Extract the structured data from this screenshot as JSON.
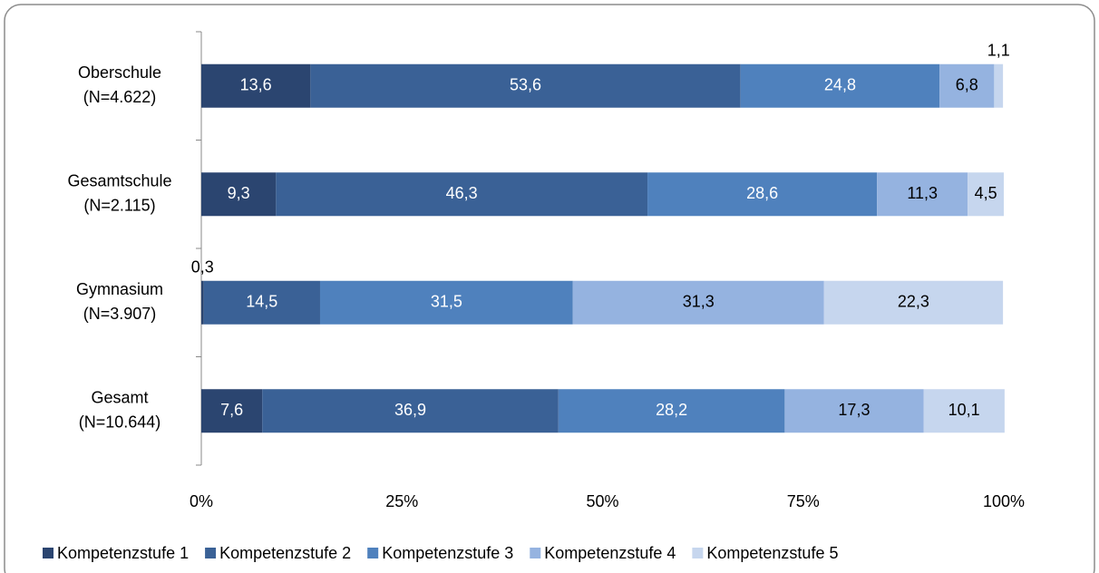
{
  "chart_data": {
    "type": "stacked-bar-horizontal",
    "categories": [
      [
        "Oberschule",
        "(N=4.622)"
      ],
      [
        "Gesamtschule",
        "(N=2.115)"
      ],
      [
        "Gymnasium",
        "(N=3.907)"
      ],
      [
        "Gesamt",
        "(N=10.644)"
      ]
    ],
    "series": [
      {
        "name": "Kompetenzstufe 1",
        "color": "#2b4570",
        "values": [
          13.6,
          9.3,
          0.3,
          7.6
        ],
        "value_labels": [
          "13,6",
          "9,3",
          "0,3",
          "7,6"
        ]
      },
      {
        "name": "Kompetenzstufe 2",
        "color": "#3a6196",
        "values": [
          53.6,
          46.3,
          14.5,
          36.9
        ],
        "value_labels": [
          "53,6",
          "46,3",
          "14,5",
          "36,9"
        ]
      },
      {
        "name": "Kompetenzstufe 3",
        "color": "#4f81bd",
        "values": [
          24.8,
          28.6,
          31.5,
          28.2
        ],
        "value_labels": [
          "24,8",
          "28,6",
          "31,5",
          "28,2"
        ]
      },
      {
        "name": "Kompetenzstufe 4",
        "color": "#95b3e0",
        "values": [
          6.8,
          11.3,
          31.3,
          17.3
        ],
        "value_labels": [
          "6,8",
          "11,3",
          "31,3",
          "17,3"
        ]
      },
      {
        "name": "Kompetenzstufe 5",
        "color": "#c6d6ee",
        "values": [
          1.1,
          4.5,
          22.3,
          10.1
        ],
        "value_labels": [
          "1,1",
          "4,5",
          "22,3",
          "10,1"
        ]
      }
    ],
    "xlim": [
      0,
      100
    ],
    "xticks": [
      {
        "value": 0,
        "label": "0%"
      },
      {
        "value": 25,
        "label": "25%"
      },
      {
        "value": 50,
        "label": "50%"
      },
      {
        "value": 75,
        "label": "75%"
      },
      {
        "value": 100,
        "label": "100%"
      }
    ],
    "legend": "bottom"
  }
}
